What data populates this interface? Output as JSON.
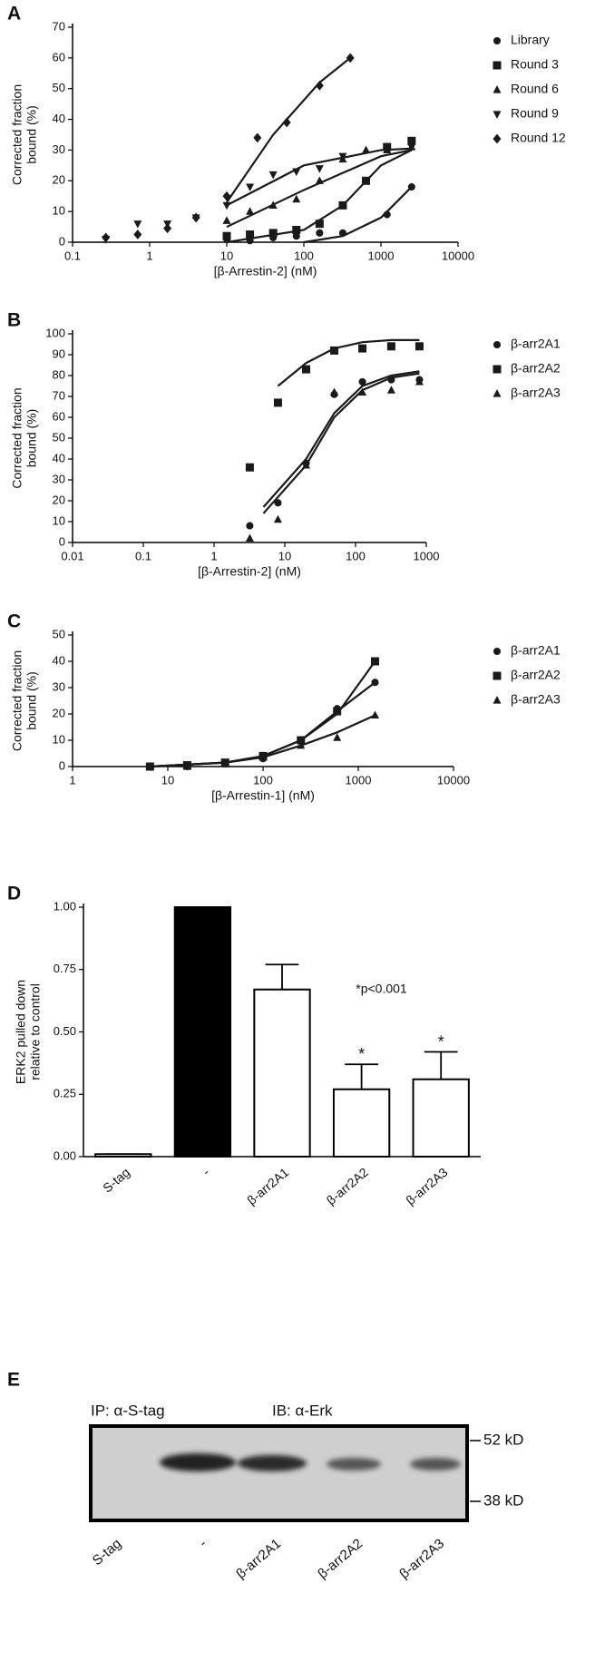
{
  "chart_data": [
    {
      "type": "scatter",
      "panel": "A",
      "xscale": "log",
      "xlabel": "[β-Arrestin-2] (nM)",
      "ylabel": [
        "Corrected fraction",
        "bound (%)"
      ],
      "xlim": [
        0.1,
        10000
      ],
      "xticks": [
        0.1,
        1,
        10,
        100,
        1000,
        10000
      ],
      "ylim": [
        0,
        70
      ],
      "yticks": [
        0,
        10,
        20,
        30,
        40,
        50,
        60,
        70
      ],
      "legend": "right",
      "series": [
        {
          "name": "Library",
          "marker": "circle",
          "color": "#1a1a1a",
          "x": [
            10,
            20,
            40,
            80,
            160,
            320,
            1200,
            2500
          ],
          "values": [
            1,
            0.5,
            1.5,
            2,
            3,
            3,
            9,
            18
          ],
          "fit": {
            "x": [
              100,
              320,
              1000,
              2500
            ],
            "values": [
              0,
              2,
              8,
              18
            ]
          }
        },
        {
          "name": "Round 3",
          "marker": "square",
          "color": "#1a1a1a",
          "x": [
            10,
            20,
            40,
            80,
            160,
            320,
            640,
            1200,
            2500
          ],
          "values": [
            2,
            2.5,
            3,
            4,
            6,
            12,
            20,
            31,
            33
          ],
          "fit": {
            "x": [
              10,
              100,
              320,
              1000,
              2500
            ],
            "values": [
              0,
              4,
              12,
              25,
              30
            ]
          }
        },
        {
          "name": "Round 6",
          "marker": "triangle",
          "color": "#1a1a1a",
          "x": [
            10,
            20,
            40,
            80,
            160,
            320,
            640,
            1200,
            2500
          ],
          "values": [
            7,
            10,
            12,
            14,
            20,
            27,
            30,
            30,
            31
          ],
          "fit": {
            "x": [
              10,
              100,
              1000,
              2500
            ],
            "values": [
              5,
              17,
              28,
              30
            ]
          }
        },
        {
          "name": "Round 9",
          "marker": "triangle-down",
          "color": "#1a1a1a",
          "x": [
            0.27,
            0.7,
            1.7,
            4,
            10,
            20,
            40,
            80,
            160,
            320,
            1200,
            2500
          ],
          "values": [
            1,
            6,
            6,
            8,
            12,
            18,
            22,
            23,
            24,
            28,
            31,
            31
          ],
          "fit": {
            "x": [
              10,
              100,
              1000,
              2500
            ],
            "values": [
              12,
              25,
              30,
              30.5
            ]
          }
        },
        {
          "name": "Round 12",
          "marker": "diamond",
          "color": "#1a1a1a",
          "x": [
            0.27,
            0.7,
            1.7,
            4,
            10,
            25,
            60,
            160,
            400
          ],
          "values": [
            1.5,
            2.5,
            4.5,
            8,
            15,
            34,
            39,
            51,
            60
          ],
          "fit": {
            "x": [
              10,
              40,
              160,
              400
            ],
            "values": [
              13,
              35,
              52,
              60
            ]
          }
        }
      ]
    },
    {
      "type": "scatter",
      "panel": "B",
      "xscale": "log",
      "xlabel": "[β-Arrestin-2] (nM)",
      "ylabel": [
        "Corrected fraction",
        "bound (%)"
      ],
      "xlim": [
        0.01,
        1000
      ],
      "xticks": [
        0.01,
        0.1,
        1,
        10,
        100,
        1000
      ],
      "ylim": [
        0,
        100
      ],
      "yticks": [
        0,
        10,
        20,
        30,
        40,
        50,
        60,
        70,
        80,
        90,
        100
      ],
      "legend": "right",
      "series": [
        {
          "name": "β-arr2A1",
          "marker": "circle",
          "color": "#1a1a1a",
          "x": [
            3.2,
            8,
            20,
            50,
            125,
            320,
            800
          ],
          "values": [
            8,
            19,
            38,
            71,
            77,
            78,
            78
          ],
          "fit": {
            "x": [
              5,
              20,
              50,
              125,
              320,
              800
            ],
            "values": [
              17,
              40,
              62,
              75,
              80,
              82
            ]
          }
        },
        {
          "name": "β-arr2A2",
          "marker": "square",
          "color": "#1a1a1a",
          "x": [
            3.2,
            8,
            20,
            50,
            125,
            320,
            800
          ],
          "values": [
            36,
            67,
            83,
            92,
            93,
            94,
            94
          ],
          "fit": {
            "x": [
              8,
              20,
              50,
              125,
              320,
              800
            ],
            "values": [
              75,
              86,
              93,
              96,
              97,
              97
            ]
          }
        },
        {
          "name": "β-arr2A3",
          "marker": "triangle",
          "color": "#1a1a1a",
          "x": [
            3.2,
            8,
            20,
            50,
            125,
            320,
            800
          ],
          "values": [
            2,
            11,
            37,
            72,
            72,
            73,
            77
          ],
          "fit": {
            "x": [
              5,
              20,
              50,
              125,
              320,
              800
            ],
            "values": [
              14,
              37,
              60,
              73,
              79,
              81
            ]
          }
        }
      ]
    },
    {
      "type": "scatter",
      "panel": "C",
      "xscale": "log",
      "xlabel": "[β-Arrestin-1] (nM)",
      "ylabel": [
        "Corrected fraction",
        "bound (%)"
      ],
      "xlim": [
        1,
        10000
      ],
      "xticks": [
        1,
        10,
        100,
        1000,
        10000
      ],
      "ylim": [
        0,
        50
      ],
      "yticks": [
        0,
        10,
        20,
        30,
        40,
        50
      ],
      "legend": "right",
      "series": [
        {
          "name": "β-arr2A1",
          "marker": "circle",
          "color": "#1a1a1a",
          "x": [
            6.5,
            16,
            40,
            100,
            250,
            600,
            1500
          ],
          "values": [
            0,
            0,
            1,
            3,
            10,
            22,
            32
          ],
          "fit": {
            "x": [
              6.5,
              40,
              100,
              250,
              600,
              1500
            ],
            "values": [
              0,
              1.5,
              4,
              10,
              21,
              32
            ]
          }
        },
        {
          "name": "β-arr2A2",
          "marker": "square",
          "color": "#1a1a1a",
          "x": [
            6.5,
            16,
            40,
            100,
            250,
            600,
            1500
          ],
          "values": [
            0,
            0.5,
            1.5,
            4,
            10,
            21,
            40
          ],
          "fit": {
            "x": [
              6.5,
              40,
              100,
              250,
              600,
              1500
            ],
            "values": [
              0,
              1.5,
              4,
              10,
              20,
              40
            ]
          }
        },
        {
          "name": "β-arr2A3",
          "marker": "triangle",
          "color": "#1a1a1a",
          "x": [
            6.5,
            16,
            40,
            100,
            250,
            600,
            1500
          ],
          "values": [
            0,
            0,
            1,
            3.5,
            8,
            11,
            19.5
          ],
          "fit": {
            "x": [
              6.5,
              40,
              100,
              250,
              600,
              1500
            ],
            "values": [
              0,
              1.5,
              3.5,
              8,
              13,
              19.5
            ]
          }
        }
      ]
    },
    {
      "type": "bar",
      "panel": "D",
      "ylabel": [
        "ERK2 pulled down",
        "relative to control"
      ],
      "categories": [
        "S-tag",
        "-",
        "β-arr2A1",
        "β-arr2A2",
        "β-arr2A3"
      ],
      "values": [
        0.01,
        1.0,
        0.67,
        0.27,
        0.31
      ],
      "errors": [
        0,
        0,
        0.1,
        0.1,
        0.11
      ],
      "colors": [
        "#ffffff",
        "#000000",
        "#ffffff",
        "#ffffff",
        "#ffffff"
      ],
      "edge_color": "#000000",
      "significance": [
        null,
        null,
        null,
        "*",
        "*"
      ],
      "annotation": "*p<0.001",
      "ylim": [
        0,
        1
      ],
      "yticks": [
        {
          "value": 0,
          "label": "0.00"
        },
        {
          "value": 0.25,
          "label": "0.25"
        },
        {
          "value": 0.5,
          "label": "0.50"
        },
        {
          "value": 0.75,
          "label": "0.75"
        },
        {
          "value": 1,
          "label": "1.00"
        }
      ]
    }
  ],
  "blot": {
    "panel": "E",
    "ip": "IP: α-S-tag",
    "ib": "IB: α-Erk",
    "markers": [
      "52 kD",
      "38 kD"
    ],
    "lanes": [
      "S-tag",
      "-",
      "β-arr2A1",
      "β-arr2A2",
      "β-arr2A3"
    ]
  }
}
